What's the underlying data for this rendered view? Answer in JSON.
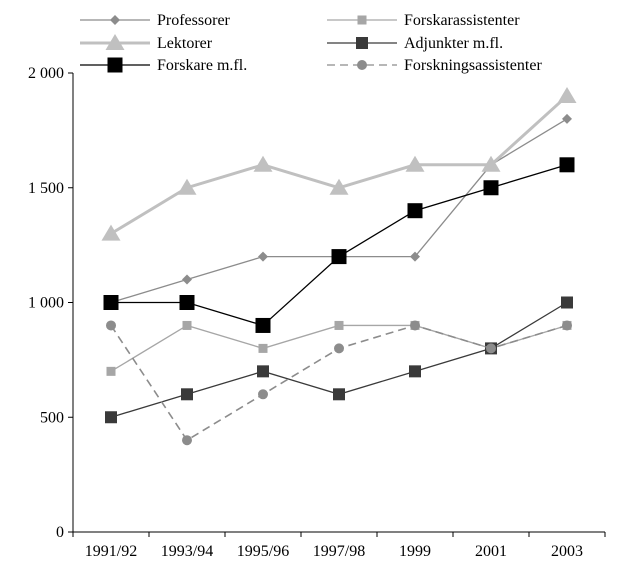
{
  "chart_data": {
    "type": "line",
    "title": "",
    "xlabel": "",
    "ylabel": "",
    "categories": [
      "1991/92",
      "1993/94",
      "1995/96",
      "1997/98",
      "1999",
      "2001",
      "2003"
    ],
    "ylim": [
      0,
      2000
    ],
    "yticks": [
      0,
      500,
      1000,
      1500,
      2000
    ],
    "ytick_labels": [
      "0",
      "500",
      "1 000",
      "1 500",
      "2 000"
    ],
    "grid": false,
    "legend_position": "top",
    "series": [
      {
        "name": "Professorer",
        "color": "#8c8c8c",
        "marker": "diamond",
        "dash": "solid",
        "values": [
          1000,
          1100,
          1200,
          1200,
          1200,
          1600,
          1800
        ]
      },
      {
        "name": "Forskarassistenter",
        "color": "#a6a6a6",
        "marker": "square-small",
        "dash": "solid",
        "values": [
          700,
          900,
          800,
          900,
          900,
          800,
          900
        ]
      },
      {
        "name": "Lektorer",
        "color": "#c0c0c0",
        "marker": "triangle",
        "dash": "solid",
        "values": [
          1300,
          1500,
          1600,
          1500,
          1600,
          1600,
          1900
        ]
      },
      {
        "name": "Adjunkter m.fl.",
        "color": "#3a3a3a",
        "marker": "square-medium",
        "dash": "solid",
        "values": [
          500,
          600,
          700,
          600,
          700,
          800,
          1000
        ]
      },
      {
        "name": "Forskare m.fl.",
        "color": "#000000",
        "marker": "square-large",
        "dash": "solid",
        "values": [
          1000,
          1000,
          900,
          1200,
          1400,
          1500,
          1600
        ]
      },
      {
        "name": "Forskningsassistenter",
        "color": "#8c8c8c",
        "marker": "circle",
        "dash": "dashed",
        "values": [
          900,
          400,
          600,
          800,
          900,
          800,
          900
        ]
      }
    ]
  }
}
